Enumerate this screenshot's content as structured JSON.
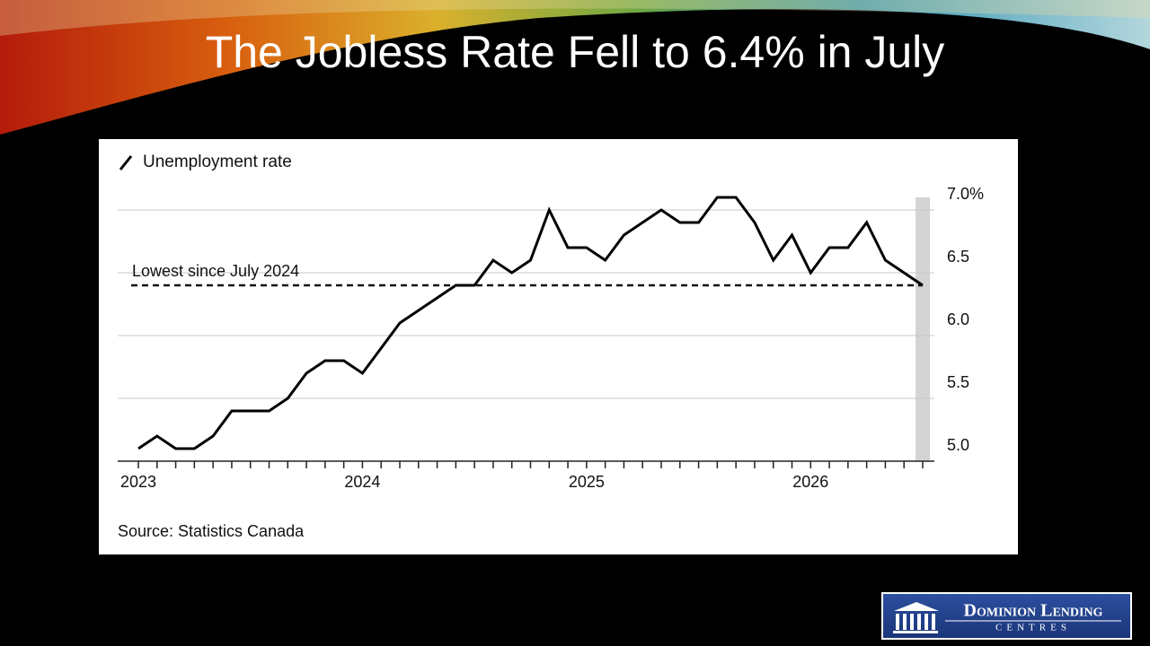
{
  "slide": {
    "title": "The Jobless Rate Fell to 6.4% in July",
    "logo": {
      "line1": "Dominion Lending",
      "line2": "Centres"
    }
  },
  "chart_data": {
    "type": "line",
    "legend_label": "Unemployment rate",
    "source": "Source: Statistics Canada",
    "annotation": {
      "text": "Lowest since July 2024",
      "value": 6.4
    },
    "categories": [
      "2023",
      null,
      null,
      null,
      null,
      null,
      null,
      null,
      null,
      null,
      null,
      null,
      "2024",
      null,
      null,
      null,
      null,
      null,
      null,
      null,
      null,
      null,
      null,
      null,
      "2025",
      null,
      null,
      null,
      null,
      null,
      null,
      null,
      null,
      null,
      null,
      null,
      "2026",
      null,
      null,
      null,
      null,
      null,
      null
    ],
    "series": [
      {
        "name": "Unemployment rate",
        "color": "#000000",
        "values": [
          5.1,
          5.2,
          5.1,
          5.1,
          5.2,
          5.4,
          5.4,
          5.4,
          5.5,
          5.7,
          5.8,
          5.8,
          5.7,
          5.9,
          6.1,
          6.2,
          6.3,
          6.4,
          6.4,
          6.6,
          6.5,
          6.6,
          7.0,
          6.7,
          6.7,
          6.6,
          6.8,
          6.9,
          7.0,
          6.9,
          6.9,
          7.1,
          7.1,
          6.9,
          6.6,
          6.8,
          6.5,
          6.7,
          6.7,
          6.9,
          6.6,
          6.5,
          6.4
        ]
      }
    ],
    "ylim": [
      5.0,
      7.2
    ],
    "yticks": [
      {
        "value": 5.0,
        "label": "5.0"
      },
      {
        "value": 5.5,
        "label": "5.5"
      },
      {
        "value": 6.0,
        "label": "6.0"
      },
      {
        "value": 6.5,
        "label": "6.5"
      },
      {
        "value": 7.0,
        "label": "7.0%"
      }
    ],
    "grid": true
  }
}
